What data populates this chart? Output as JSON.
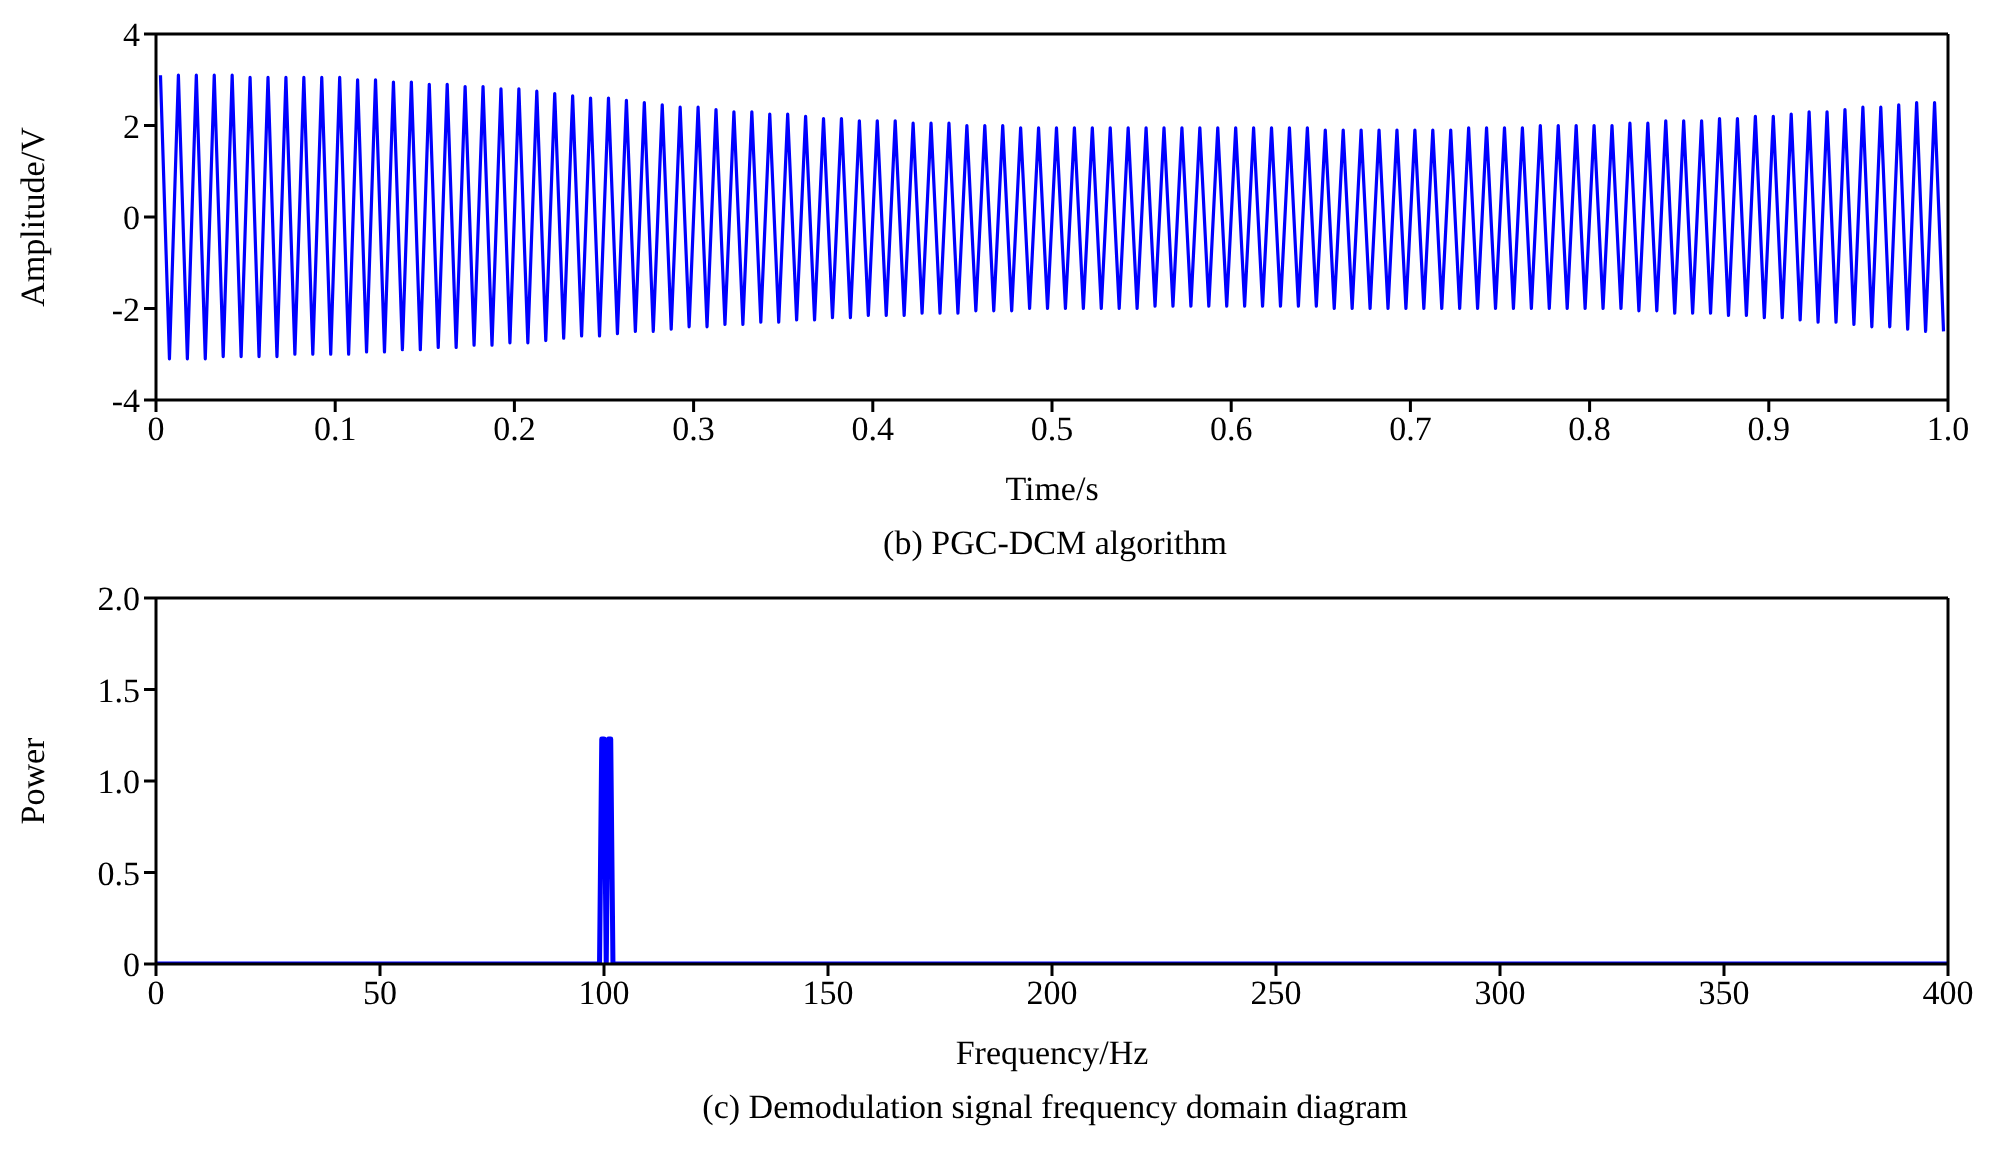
{
  "chart_data": [
    {
      "type": "line",
      "title": "(b) PGC-DCM algorithm",
      "xlabel": "Time/s",
      "ylabel": "Amplitude/V",
      "xlim": [
        0,
        1
      ],
      "xticks": [
        0,
        0.1,
        0.2,
        0.3,
        0.4,
        0.5,
        0.6,
        0.7,
        0.8,
        0.9,
        {
          "value": 1,
          "label": "1.0"
        }
      ],
      "ylim": [
        -4,
        4
      ],
      "yticks": [
        -4,
        -2,
        0,
        2,
        4
      ],
      "marker": "none",
      "line_style": "solid",
      "series": [
        {
          "color": "#0000ff",
          "x": [
            0.0025,
            0.0075,
            0.0125,
            0.0175,
            0.0225,
            0.0275,
            0.0325,
            0.0375,
            0.0425,
            0.0475,
            0.0525,
            0.0575,
            0.0625,
            0.0675,
            0.0725,
            0.0775,
            0.0825,
            0.0875,
            0.0925,
            0.0975,
            0.1025,
            0.1075,
            0.1125,
            0.1175,
            0.1225,
            0.1275,
            0.1325,
            0.1375,
            0.1425,
            0.1475,
            0.1525,
            0.1575,
            0.1625,
            0.1675,
            0.1725,
            0.1775,
            0.1825,
            0.1875,
            0.1925,
            0.1975,
            0.2025,
            0.2075,
            0.2125,
            0.2175,
            0.2225,
            0.2275,
            0.2325,
            0.2375,
            0.2425,
            0.2475,
            0.2525,
            0.2575,
            0.2625,
            0.2675,
            0.2725,
            0.2775,
            0.2825,
            0.2875,
            0.2925,
            0.2975,
            0.3025,
            0.3075,
            0.3125,
            0.3175,
            0.3225,
            0.3275,
            0.3325,
            0.3375,
            0.3425,
            0.3475,
            0.3525,
            0.3575,
            0.3625,
            0.3675,
            0.3725,
            0.3775,
            0.3825,
            0.3875,
            0.3925,
            0.3975,
            0.4025,
            0.4075,
            0.4125,
            0.4175,
            0.4225,
            0.4275,
            0.4325,
            0.4375,
            0.4425,
            0.4475,
            0.4525,
            0.4575,
            0.4625,
            0.4675,
            0.4725,
            0.4775,
            0.4825,
            0.4875,
            0.4925,
            0.4975,
            0.5025,
            0.5075,
            0.5125,
            0.5175,
            0.5225,
            0.5275,
            0.5325,
            0.5375,
            0.5425,
            0.5475,
            0.5525,
            0.5575,
            0.5625,
            0.5675,
            0.5725,
            0.5775,
            0.5825,
            0.5875,
            0.5925,
            0.5975,
            0.6025,
            0.6075,
            0.6125,
            0.6175,
            0.6225,
            0.6275,
            0.6325,
            0.6375,
            0.6425,
            0.6475,
            0.6525,
            0.6575,
            0.6625,
            0.6675,
            0.6725,
            0.6775,
            0.6825,
            0.6875,
            0.6925,
            0.6975,
            0.7025,
            0.7075,
            0.7125,
            0.7175,
            0.7225,
            0.7275,
            0.7325,
            0.7375,
            0.7425,
            0.7475,
            0.7525,
            0.7575,
            0.7625,
            0.7675,
            0.7725,
            0.7775,
            0.7825,
            0.7875,
            0.7925,
            0.7975,
            0.8025,
            0.8075,
            0.8125,
            0.8175,
            0.8225,
            0.8275,
            0.8325,
            0.8375,
            0.8425,
            0.8475,
            0.8525,
            0.8575,
            0.8625,
            0.8675,
            0.8725,
            0.8775,
            0.8825,
            0.8875,
            0.8925,
            0.8975,
            0.9025,
            0.9075,
            0.9125,
            0.9175,
            0.9225,
            0.9275,
            0.9325,
            0.9375,
            0.9425,
            0.9475,
            0.9525,
            0.9575,
            0.9625,
            0.9675,
            0.9725,
            0.9775,
            0.9825,
            0.9875,
            0.9925,
            0.9975
          ],
          "values": [
            3.1,
            -3.1,
            3.1,
            -3.1,
            3.1,
            -3.1,
            3.1,
            -3.05,
            3.1,
            -3.05,
            3.05,
            -3.05,
            3.05,
            -3.05,
            3.05,
            -3.0,
            3.05,
            -3.0,
            3.05,
            -3.0,
            3.05,
            -3.0,
            3.0,
            -2.95,
            3.0,
            -2.95,
            2.95,
            -2.9,
            2.95,
            -2.9,
            2.9,
            -2.85,
            2.9,
            -2.85,
            2.85,
            -2.8,
            2.85,
            -2.8,
            2.8,
            -2.75,
            2.8,
            -2.75,
            2.75,
            -2.7,
            2.7,
            -2.65,
            2.65,
            -2.6,
            2.6,
            -2.6,
            2.6,
            -2.55,
            2.55,
            -2.5,
            2.5,
            -2.5,
            2.45,
            -2.45,
            2.4,
            -2.4,
            2.4,
            -2.4,
            2.35,
            -2.35,
            2.3,
            -2.35,
            2.3,
            -2.3,
            2.25,
            -2.3,
            2.25,
            -2.25,
            2.2,
            -2.25,
            2.15,
            -2.2,
            2.15,
            -2.2,
            2.1,
            -2.15,
            2.1,
            -2.15,
            2.1,
            -2.15,
            2.05,
            -2.1,
            2.05,
            -2.1,
            2.05,
            -2.1,
            2.0,
            -2.05,
            2.0,
            -2.05,
            2.0,
            -2.05,
            1.95,
            -2.0,
            1.95,
            -2.0,
            1.95,
            -2.0,
            1.95,
            -2.0,
            1.95,
            -2.0,
            1.95,
            -2.0,
            1.95,
            -2.0,
            1.95,
            -1.95,
            1.95,
            -1.95,
            1.95,
            -1.95,
            1.95,
            -1.95,
            1.95,
            -1.95,
            1.95,
            -1.95,
            1.95,
            -1.95,
            1.95,
            -1.95,
            1.95,
            -1.95,
            1.95,
            -1.95,
            1.9,
            -2.0,
            1.9,
            -2.0,
            1.9,
            -2.0,
            1.9,
            -2.0,
            1.9,
            -2.0,
            1.9,
            -2.0,
            1.9,
            -2.0,
            1.9,
            -2.0,
            1.95,
            -2.0,
            1.95,
            -2.0,
            1.95,
            -2.0,
            1.95,
            -2.0,
            2.0,
            -2.0,
            2.0,
            -2.0,
            2.0,
            -2.0,
            2.0,
            -2.0,
            2.0,
            -2.0,
            2.05,
            -2.05,
            2.05,
            -2.05,
            2.1,
            -2.1,
            2.1,
            -2.1,
            2.1,
            -2.1,
            2.15,
            -2.15,
            2.15,
            -2.15,
            2.2,
            -2.2,
            2.2,
            -2.2,
            2.25,
            -2.25,
            2.3,
            -2.3,
            2.3,
            -2.3,
            2.35,
            -2.35,
            2.4,
            -2.4,
            2.4,
            -2.4,
            2.45,
            -2.45,
            2.5,
            -2.5,
            2.5,
            -2.5
          ]
        }
      ]
    },
    {
      "type": "line",
      "title": "(c) Demodulation signal frequency domain diagram",
      "xlabel": "Frequency/Hz",
      "ylabel": "Power",
      "xlim": [
        0,
        400
      ],
      "xticks": [
        0,
        50,
        100,
        150,
        200,
        250,
        300,
        350,
        400
      ],
      "ylim": [
        0,
        2
      ],
      "yticks": [
        0,
        0.5,
        {
          "value": 1,
          "label": "1.0"
        },
        1.5,
        {
          "value": 2,
          "label": "2.0"
        }
      ],
      "marker": "none",
      "line_style": "solid",
      "series": [
        {
          "color": "#0000ff",
          "x": [
            0,
            99,
            99.5,
            100,
            100.5,
            101,
            101.5,
            102,
            400
          ],
          "values": [
            0,
            0,
            1.23,
            1.23,
            0,
            1.23,
            1.23,
            0,
            0
          ]
        }
      ]
    }
  ]
}
